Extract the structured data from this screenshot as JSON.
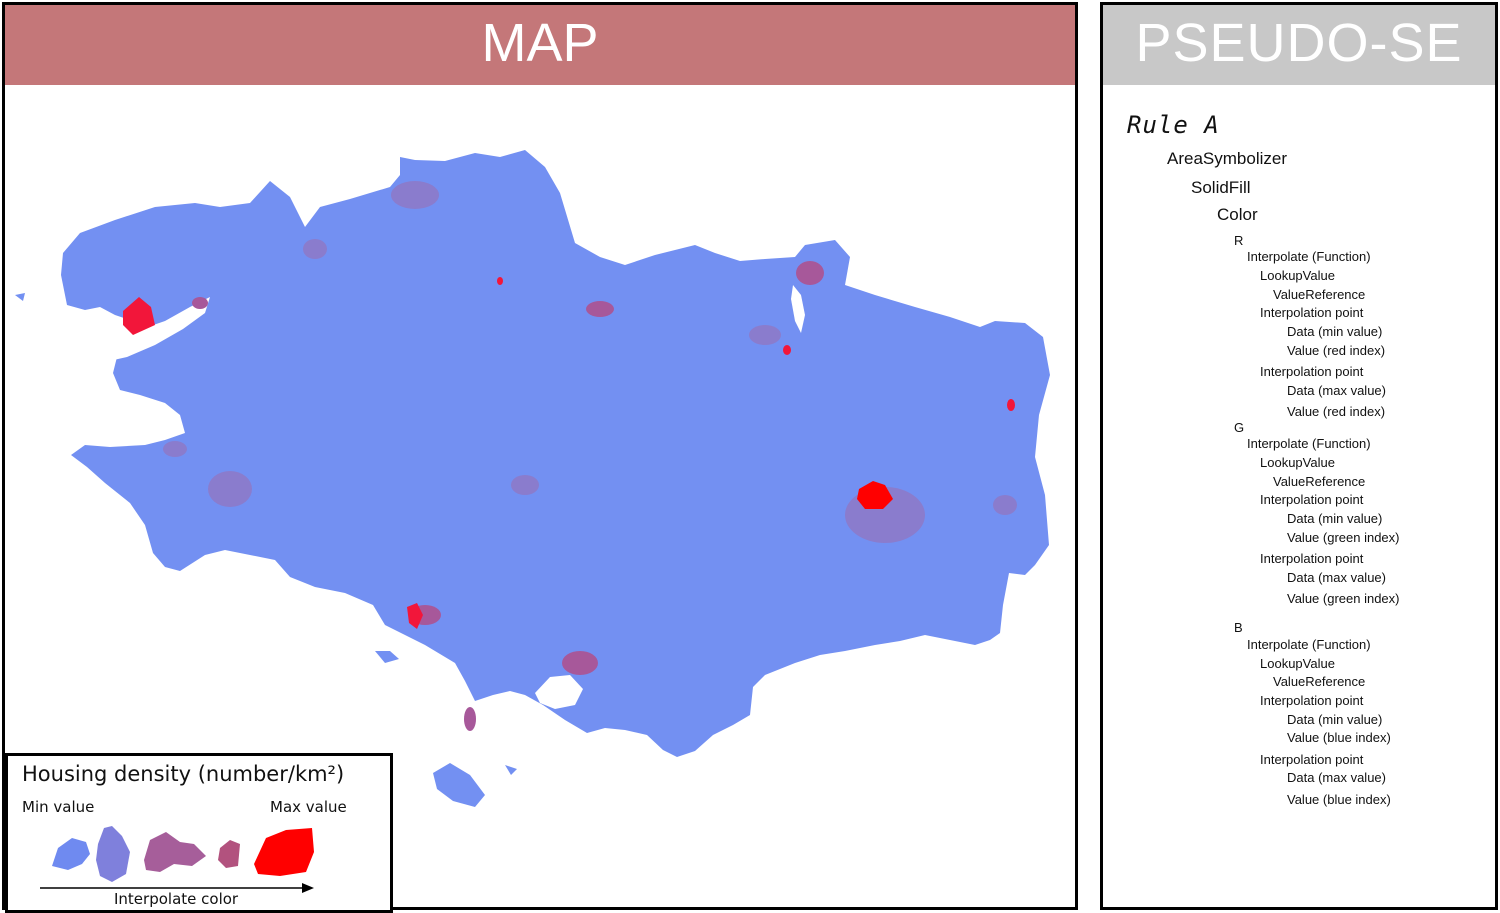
{
  "map_panel": {
    "title": "MAP"
  },
  "legend": {
    "title": "Housing density (number/km²)",
    "min_label": "Min value",
    "max_label": "Max value",
    "arrow_caption": "Interpolate color",
    "swatch_colors": [
      "#6f8af0",
      "#7f80dc",
      "#a65e9a",
      "#b2527e",
      "#ff0000"
    ]
  },
  "map_colors": {
    "base": "#7390f2",
    "medium": "#8a7ccd",
    "high": "#a7589a",
    "max": "#f2163a"
  },
  "se_panel": {
    "title": "PSEUDO-SE",
    "rule": "Rule A",
    "symbolizer": "AreaSymbolizer",
    "fill": "SolidFill",
    "color": "Color",
    "channels": [
      {
        "name": "R",
        "function": "Interpolate (Function)",
        "lookup": "LookupValue",
        "reference": "ValueReference",
        "point1": "Interpolation point",
        "data_min": "Data (min value)",
        "value1": "Value (red index)",
        "point2": "Interpolation point",
        "data_max": "Data (max value)",
        "value2": "Value (red index)"
      },
      {
        "name": "G",
        "function": "Interpolate (Function)",
        "lookup": "LookupValue",
        "reference": "ValueReference",
        "point1": "Interpolation point",
        "data_min": "Data (min value)",
        "value1": "Value (green index)",
        "point2": "Interpolation point",
        "data_max": "Data (max value)",
        "value2": "Value (green index)"
      },
      {
        "name": "B",
        "function": "Interpolate (Function)",
        "lookup": "LookupValue",
        "reference": "ValueReference",
        "point1": "Interpolation point",
        "data_min": "Data (min value)",
        "value1": "Value (blue index)",
        "point2": "Interpolation point",
        "data_max": "Data (max value)",
        "value2": "Value (blue index)"
      }
    ]
  }
}
